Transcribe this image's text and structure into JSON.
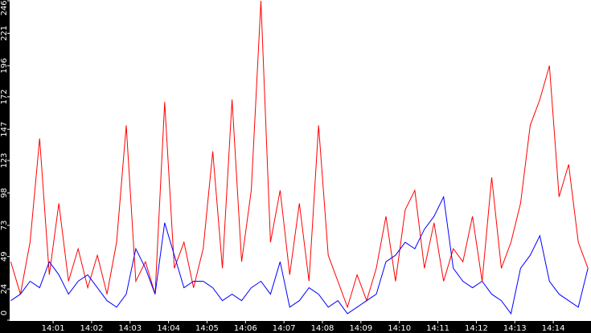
{
  "chart_data": {
    "type": "line",
    "x": [
      -0.1,
      0.15,
      0.4,
      0.65,
      0.9,
      1.15,
      1.4,
      1.65,
      1.9,
      2.15,
      2.4,
      2.65,
      2.9,
      3.15,
      3.4,
      3.65,
      3.9,
      4.15,
      4.4,
      4.65,
      4.9,
      5.15,
      5.4,
      5.65,
      5.9,
      6.15,
      6.4,
      6.65,
      6.9,
      7.15,
      7.4,
      7.65,
      7.9,
      8.15,
      8.4,
      8.65,
      8.9,
      9.15,
      9.4,
      9.65,
      9.9,
      10.15,
      10.4,
      10.65,
      10.9,
      11.15,
      11.4,
      11.65,
      11.9,
      12.15,
      12.4,
      12.65,
      12.9,
      13.15,
      13.4,
      13.65,
      13.9,
      14.15,
      14.4,
      14.65,
      14.9
    ],
    "series": [
      {
        "color": "#ff0000",
        "values": [
          45,
          20,
          60,
          140,
          35,
          90,
          30,
          55,
          25,
          50,
          20,
          60,
          150,
          30,
          45,
          20,
          168,
          40,
          60,
          25,
          55,
          130,
          40,
          170,
          45,
          100,
          246,
          60,
          100,
          35,
          90,
          30,
          150,
          50,
          30,
          10,
          35,
          15,
          40,
          80,
          30,
          85,
          100,
          40,
          75,
          30,
          55,
          45,
          80,
          30,
          110,
          40,
          60,
          90,
          150,
          170,
          196,
          95,
          120,
          60,
          40
        ]
      },
      {
        "color": "#0000ff",
        "values": [
          15,
          20,
          30,
          25,
          45,
          35,
          20,
          30,
          35,
          25,
          15,
          10,
          20,
          55,
          40,
          20,
          75,
          50,
          25,
          30,
          30,
          25,
          15,
          20,
          15,
          25,
          30,
          20,
          45,
          10,
          15,
          25,
          20,
          10,
          15,
          5,
          10,
          15,
          20,
          45,
          50,
          60,
          55,
          70,
          80,
          95,
          40,
          30,
          25,
          30,
          20,
          15,
          5,
          40,
          50,
          65,
          30,
          20,
          15,
          10,
          40
        ]
      }
    ],
    "xlim": [
      -0.13,
      14.98
    ],
    "xticks": [
      {
        "value": 1,
        "label": "14:01"
      },
      {
        "value": 2,
        "label": "14:02"
      },
      {
        "value": 3,
        "label": "14:03"
      },
      {
        "value": 4,
        "label": "14:04"
      },
      {
        "value": 5,
        "label": "14:05"
      },
      {
        "value": 6,
        "label": "14:06"
      },
      {
        "value": 7,
        "label": "14:07"
      },
      {
        "value": 8,
        "label": "14:08"
      },
      {
        "value": 9,
        "label": "14:09"
      },
      {
        "value": 10,
        "label": "14:10"
      },
      {
        "value": 11,
        "label": "14:11"
      },
      {
        "value": 12,
        "label": "14:12"
      },
      {
        "value": 13,
        "label": "14:13"
      },
      {
        "value": 14,
        "label": "14:14"
      }
    ],
    "ylim": [
      0,
      246
    ],
    "yticks": [
      0,
      24,
      49,
      73,
      98,
      123,
      147,
      172,
      196,
      221,
      246
    ]
  }
}
